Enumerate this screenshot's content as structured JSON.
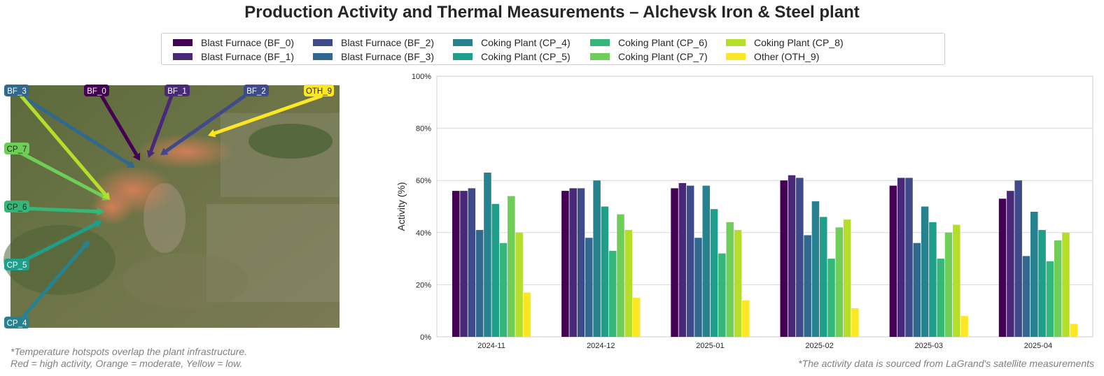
{
  "title": "Production Activity and Thermal Measurements – Alchevsk Iron & Steel plant",
  "notes": {
    "left_line1": "*Temperature hotspots overlap the plant infrastructure.",
    "left_line2": "Red = high activity, Orange = moderate, Yellow = low.",
    "right": "*The activity data is sourced from LaGrand's satellite measurements"
  },
  "map": {
    "labels": [
      {
        "text": "BF_3",
        "color": "#31688e",
        "text_color": "#ffffff"
      },
      {
        "text": "BF_0",
        "color": "#440154",
        "text_color": "#ffffff"
      },
      {
        "text": "BF_1",
        "color": "#482878",
        "text_color": "#ffffff"
      },
      {
        "text": "BF_2",
        "color": "#3e4a89",
        "text_color": "#ffffff"
      },
      {
        "text": "OTH_9",
        "color": "#fde725",
        "text_color": "#262626"
      },
      {
        "text": "CP_7",
        "color": "#6ece58",
        "text_color": "#262626"
      },
      {
        "text": "CP_6",
        "color": "#35b779",
        "text_color": "#262626"
      },
      {
        "text": "CP_5",
        "color": "#1f9e89",
        "text_color": "#ffffff"
      },
      {
        "text": "CP_4",
        "color": "#26828e",
        "text_color": "#ffffff"
      }
    ]
  },
  "chart_data": {
    "type": "bar",
    "categories": [
      "2024-11",
      "2024-12",
      "2025-01",
      "2025-02",
      "2025-03",
      "2025-04"
    ],
    "ylabel": "Activity (%)",
    "xlabel": "",
    "ylim": [
      0,
      100
    ],
    "yticks": [
      "0%",
      "20%",
      "40%",
      "60%",
      "80%",
      "100%"
    ],
    "grid": true,
    "legend_position": "top-center",
    "series": [
      {
        "name": "Blast Furnace (BF_0)",
        "color": "#440154",
        "values": [
          56,
          56,
          57,
          60,
          58,
          53
        ]
      },
      {
        "name": "Blast Furnace (BF_1)",
        "color": "#482878",
        "values": [
          56,
          57,
          59,
          62,
          61,
          56
        ]
      },
      {
        "name": "Blast Furnace (BF_2)",
        "color": "#3e4a89",
        "values": [
          57,
          57,
          58,
          61,
          61,
          60
        ]
      },
      {
        "name": "Blast Furnace (BF_3)",
        "color": "#31688e",
        "values": [
          41,
          38,
          38,
          39,
          36,
          31
        ]
      },
      {
        "name": "Coking Plant (CP_4)",
        "color": "#26828e",
        "values": [
          63,
          60,
          58,
          52,
          50,
          48
        ]
      },
      {
        "name": "Coking Plant (CP_5)",
        "color": "#1f9e89",
        "values": [
          51,
          50,
          49,
          46,
          44,
          41
        ]
      },
      {
        "name": "Coking Plant (CP_6)",
        "color": "#35b779",
        "values": [
          36,
          33,
          32,
          30,
          30,
          29
        ]
      },
      {
        "name": "Coking Plant (CP_7)",
        "color": "#6ece58",
        "values": [
          54,
          47,
          44,
          42,
          40,
          37
        ]
      },
      {
        "name": "Coking Plant (CP_8)",
        "color": "#b5de2b",
        "values": [
          40,
          41,
          41,
          45,
          43,
          40
        ]
      },
      {
        "name": "Other (OTH_9)",
        "color": "#fde725",
        "values": [
          17,
          15,
          14,
          11,
          8,
          5
        ]
      }
    ]
  }
}
